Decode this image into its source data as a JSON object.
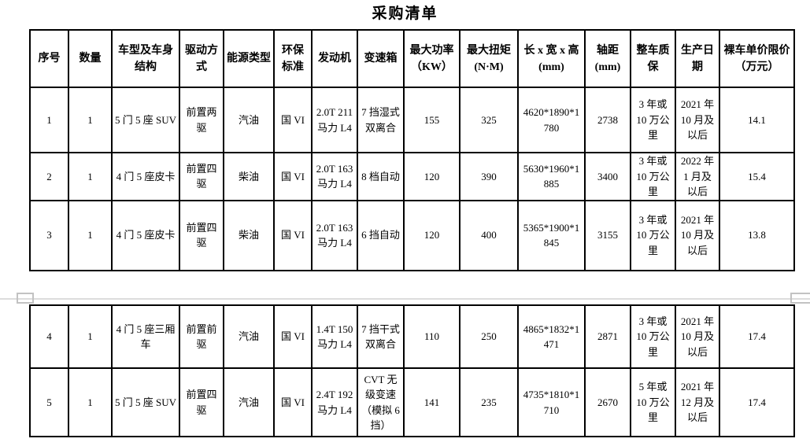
{
  "title": "采购清单",
  "table": {
    "headers": [
      "序号",
      "数量",
      "车型及车身结构",
      "驱动方式",
      "能源类型",
      "环保标准",
      "发动机",
      "变速箱",
      "最大功率（KW）",
      "最大扭矩(N·M)",
      "长 x 宽 x 高(mm)",
      "轴距(mm)",
      "整车质保",
      "生产日期",
      "裸车单价限价（万元）"
    ],
    "pages": [
      {
        "rows": [
          [
            "1",
            "1",
            "5 门 5 座 SUV",
            "前置两驱",
            "汽油",
            "国 VI",
            "2.0T 211 马力 L4",
            "7 挡湿式双离合",
            "155",
            "325",
            "4620*1890*1780",
            "2738",
            "3 年或 10 万公里",
            "2021 年 10 月及以后",
            "14.1"
          ],
          [
            "2",
            "1",
            "4 门 5 座皮卡",
            "前置四驱",
            "柴油",
            "国 VI",
            "2.0T 163 马力 L4",
            "8 档自动",
            "120",
            "390",
            "5630*1960*1885",
            "3400",
            "3 年或 10 万公里",
            "2022 年 1 月及以后",
            "15.4"
          ],
          [
            "3",
            "1",
            "4 门 5 座皮卡",
            "前置四驱",
            "柴油",
            "国 VI",
            "2.0T 163 马力 L4",
            "6 挡自动",
            "120",
            "400",
            "5365*1900*1845",
            "3155",
            "3 年或 10 万公里",
            "2021 年 10 月及以后",
            "13.8"
          ]
        ]
      },
      {
        "rows": [
          [
            "4",
            "1",
            "4 门 5 座三厢车",
            "前置前驱",
            "汽油",
            "国 VI",
            "1.4T 150 马力 L4",
            "7 挡干式双离合",
            "110",
            "250",
            "4865*1832*1471",
            "2871",
            "3 年或 10 万公里",
            "2021 年 10 月及以后",
            "17.4"
          ],
          [
            "5",
            "1",
            "5 门 5 座 SUV",
            "前置四驱",
            "汽油",
            "国 VI",
            "2.4T 192 马力 L4",
            "CVT 无级变速（模拟 6 挡）",
            "141",
            "235",
            "4735*1810*1710",
            "2670",
            "5 年或 10 万公里",
            "2021 年 12 月及以后",
            "17.4"
          ]
        ]
      }
    ]
  },
  "colors": {
    "table_border": "#000000",
    "text": "#000000",
    "background": "#ffffff",
    "page_break_line": "#dcdcdc",
    "page_margin_mark": "#c2c2c2"
  }
}
